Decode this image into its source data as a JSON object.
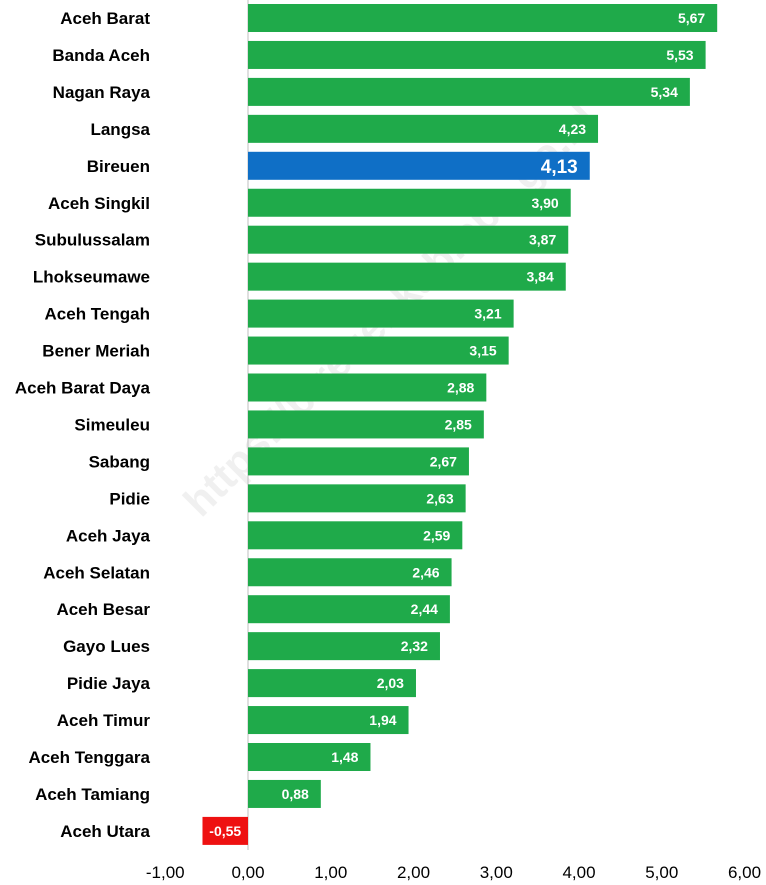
{
  "watermark": "https://bireuenkab.bps.go.id",
  "chart_data": {
    "type": "bar",
    "orientation": "horizontal",
    "categories": [
      "Aceh Barat",
      "Banda Aceh",
      "Nagan Raya",
      "Langsa",
      "Bireuen",
      "Aceh Singkil",
      "Subulussalam",
      "Lhokseumawe",
      "Aceh Tengah",
      "Bener Meriah",
      "Aceh Barat Daya",
      "Simeuleu",
      "Sabang",
      "Pidie",
      "Aceh Jaya",
      "Aceh Selatan",
      "Aceh Besar",
      "Gayo Lues",
      "Pidie Jaya",
      "Aceh Timur",
      "Aceh Tenggara",
      "Aceh Tamiang",
      "Aceh Utara"
    ],
    "values": [
      5.67,
      5.53,
      5.34,
      4.23,
      4.13,
      3.9,
      3.87,
      3.84,
      3.21,
      3.15,
      2.88,
      2.85,
      2.67,
      2.63,
      2.59,
      2.46,
      2.44,
      2.32,
      2.03,
      1.94,
      1.48,
      0.88,
      -0.55
    ],
    "value_labels": [
      "5,67",
      "5,53",
      "5,34",
      "4,23",
      "4,13",
      "3,90",
      "3,87",
      "3,84",
      "3,21",
      "3,15",
      "2,88",
      "2,85",
      "2,67",
      "2,63",
      "2,59",
      "2,46",
      "2,44",
      "2,32",
      "2,03",
      "1,94",
      "1,48",
      "0,88",
      "-0,55"
    ],
    "highlight": "Bireuen",
    "xlim": [
      -1,
      6
    ],
    "xticks": [
      -1,
      0,
      1,
      2,
      3,
      4,
      5,
      6
    ],
    "xtick_labels": [
      "-1,00",
      "0,00",
      "1,00",
      "2,00",
      "3,00",
      "4,00",
      "5,00",
      "6,00"
    ],
    "colors": {
      "positive": "#1faa4a",
      "highlight": "#0f6fc6",
      "negative": "#ee1111",
      "axis": "#bfbfbf"
    },
    "grid": false,
    "legend": "none"
  }
}
